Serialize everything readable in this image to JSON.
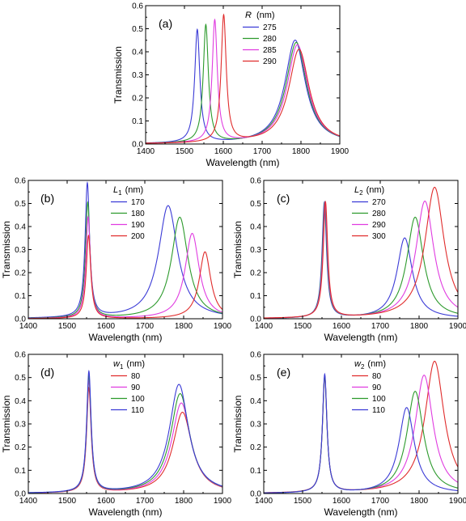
{
  "chart_data": [
    {
      "panel": "(a)",
      "type": "line",
      "xlabel": "Wavelength (nm)",
      "ylabel": "Transmission",
      "xlim": [
        1400,
        1900
      ],
      "ylim": [
        0,
        0.6
      ],
      "xticks": [
        "1400",
        "1500",
        "1600",
        "1700",
        "1800",
        "1900"
      ],
      "yticks": [
        "0.0",
        "0.1",
        "0.2",
        "0.3",
        "0.4",
        "0.5",
        "0.6"
      ],
      "legend_title": "R",
      "legend_sub": "",
      "legend_unit": "(nm)",
      "legend_position": "top-right",
      "series": [
        {
          "name": "275",
          "color": "#3b3bd6",
          "peaks": [
            {
              "x": 1533,
              "y": 0.49,
              "w": 8
            },
            {
              "x": 1785,
              "y": 0.45,
              "w": 32
            }
          ]
        },
        {
          "name": "280",
          "color": "#2c9a2c",
          "peaks": [
            {
              "x": 1555,
              "y": 0.51,
              "w": 8
            },
            {
              "x": 1788,
              "y": 0.44,
              "w": 32
            }
          ]
        },
        {
          "name": "285",
          "color": "#e03ce0",
          "peaks": [
            {
              "x": 1578,
              "y": 0.53,
              "w": 8
            },
            {
              "x": 1791,
              "y": 0.43,
              "w": 32
            }
          ]
        },
        {
          "name": "290",
          "color": "#e02c2c",
          "peaks": [
            {
              "x": 1601,
              "y": 0.55,
              "w": 8
            },
            {
              "x": 1795,
              "y": 0.41,
              "w": 32
            }
          ]
        }
      ]
    },
    {
      "panel": "(b)",
      "type": "line",
      "xlabel": "Wavelength (nm)",
      "ylabel": "Transmission",
      "xlim": [
        1400,
        1900
      ],
      "ylim": [
        0,
        0.6
      ],
      "xticks": [
        "1400",
        "1500",
        "1600",
        "1700",
        "1800",
        "1900"
      ],
      "yticks": [
        "0.0",
        "0.1",
        "0.2",
        "0.3",
        "0.4",
        "0.5",
        "0.6"
      ],
      "legend_title": "L",
      "legend_sub": "1",
      "legend_unit": "(nm)",
      "legend_position": "top-left",
      "series": [
        {
          "name": "170",
          "color": "#3b3bd6",
          "peaks": [
            {
              "x": 1552,
              "y": 0.58,
              "w": 7
            },
            {
              "x": 1760,
              "y": 0.49,
              "w": 30
            }
          ]
        },
        {
          "name": "180",
          "color": "#2c9a2c",
          "peaks": [
            {
              "x": 1553,
              "y": 0.5,
              "w": 7
            },
            {
              "x": 1790,
              "y": 0.44,
              "w": 26
            }
          ]
        },
        {
          "name": "190",
          "color": "#e03ce0",
          "peaks": [
            {
              "x": 1554,
              "y": 0.44,
              "w": 7
            },
            {
              "x": 1822,
              "y": 0.37,
              "w": 22
            }
          ]
        },
        {
          "name": "200",
          "color": "#e02c2c",
          "peaks": [
            {
              "x": 1555,
              "y": 0.36,
              "w": 7
            },
            {
              "x": 1855,
              "y": 0.29,
              "w": 18
            }
          ]
        }
      ]
    },
    {
      "panel": "(c)",
      "type": "line",
      "xlabel": "Wavelength (nm)",
      "ylabel": "Transmission",
      "xlim": [
        1400,
        1900
      ],
      "ylim": [
        0,
        0.6
      ],
      "xticks": [
        "1400",
        "1500",
        "1600",
        "1700",
        "1800",
        "1900"
      ],
      "yticks": [
        "0.0",
        "0.1",
        "0.2",
        "0.3",
        "0.4",
        "0.5",
        "0.6"
      ],
      "legend_title": "L",
      "legend_sub": "2",
      "legend_unit": "(nm)",
      "legend_position": "top-left",
      "series": [
        {
          "name": "270",
          "color": "#3b3bd6",
          "peaks": [
            {
              "x": 1556,
              "y": 0.5,
              "w": 7
            },
            {
              "x": 1763,
              "y": 0.35,
              "w": 24
            }
          ]
        },
        {
          "name": "280",
          "color": "#2c9a2c",
          "peaks": [
            {
              "x": 1557,
              "y": 0.5,
              "w": 7
            },
            {
              "x": 1790,
              "y": 0.44,
              "w": 26
            }
          ]
        },
        {
          "name": "290",
          "color": "#e03ce0",
          "peaks": [
            {
              "x": 1558,
              "y": 0.5,
              "w": 7
            },
            {
              "x": 1815,
              "y": 0.51,
              "w": 28
            }
          ]
        },
        {
          "name": "300",
          "color": "#e02c2c",
          "peaks": [
            {
              "x": 1559,
              "y": 0.5,
              "w": 7
            },
            {
              "x": 1840,
              "y": 0.57,
              "w": 30
            }
          ]
        }
      ]
    },
    {
      "panel": "(d)",
      "type": "line",
      "xlabel": "Wavelength (nm)",
      "ylabel": "Transmission",
      "xlim": [
        1400,
        1900
      ],
      "ylim": [
        0,
        0.6
      ],
      "xticks": [
        "1400",
        "1500",
        "1600",
        "1700",
        "1800",
        "1900"
      ],
      "yticks": [
        "0.0",
        "0.1",
        "0.2",
        "0.3",
        "0.4",
        "0.5",
        "0.6"
      ],
      "legend_title": "w",
      "legend_sub": "1",
      "legend_unit": "(nm)",
      "legend_position": "top-left",
      "series": [
        {
          "name": "80",
          "color": "#e02c2c",
          "peaks": [
            {
              "x": 1556,
              "y": 0.45,
              "w": 7
            },
            {
              "x": 1797,
              "y": 0.35,
              "w": 30
            }
          ]
        },
        {
          "name": "90",
          "color": "#e03ce0",
          "peaks": [
            {
              "x": 1556,
              "y": 0.48,
              "w": 7
            },
            {
              "x": 1794,
              "y": 0.39,
              "w": 30
            }
          ]
        },
        {
          "name": "100",
          "color": "#2c9a2c",
          "peaks": [
            {
              "x": 1556,
              "y": 0.5,
              "w": 7
            },
            {
              "x": 1791,
              "y": 0.43,
              "w": 30
            }
          ]
        },
        {
          "name": "110",
          "color": "#3b3bd6",
          "peaks": [
            {
              "x": 1556,
              "y": 0.52,
              "w": 7
            },
            {
              "x": 1788,
              "y": 0.47,
              "w": 30
            }
          ]
        }
      ]
    },
    {
      "panel": "(e)",
      "type": "line",
      "xlabel": "Wavelength (nm)",
      "ylabel": "Transmission",
      "xlim": [
        1400,
        1900
      ],
      "ylim": [
        0,
        0.6
      ],
      "xticks": [
        "1400",
        "1500",
        "1600",
        "1700",
        "1800",
        "1900"
      ],
      "yticks": [
        "0.0",
        "0.1",
        "0.2",
        "0.3",
        "0.4",
        "0.5",
        "0.6"
      ],
      "legend_title": "w",
      "legend_sub": "2",
      "legend_unit": "(nm)",
      "legend_position": "top-left",
      "series": [
        {
          "name": "80",
          "color": "#e02c2c",
          "peaks": [
            {
              "x": 1557,
              "y": 0.5,
              "w": 7
            },
            {
              "x": 1840,
              "y": 0.57,
              "w": 30
            }
          ]
        },
        {
          "name": "90",
          "color": "#e03ce0",
          "peaks": [
            {
              "x": 1557,
              "y": 0.5,
              "w": 7
            },
            {
              "x": 1813,
              "y": 0.51,
              "w": 28
            }
          ]
        },
        {
          "name": "100",
          "color": "#2c9a2c",
          "peaks": [
            {
              "x": 1557,
              "y": 0.5,
              "w": 7
            },
            {
              "x": 1790,
              "y": 0.44,
              "w": 26
            }
          ]
        },
        {
          "name": "110",
          "color": "#3b3bd6",
          "peaks": [
            {
              "x": 1557,
              "y": 0.51,
              "w": 7
            },
            {
              "x": 1768,
              "y": 0.37,
              "w": 24
            }
          ]
        }
      ]
    }
  ]
}
